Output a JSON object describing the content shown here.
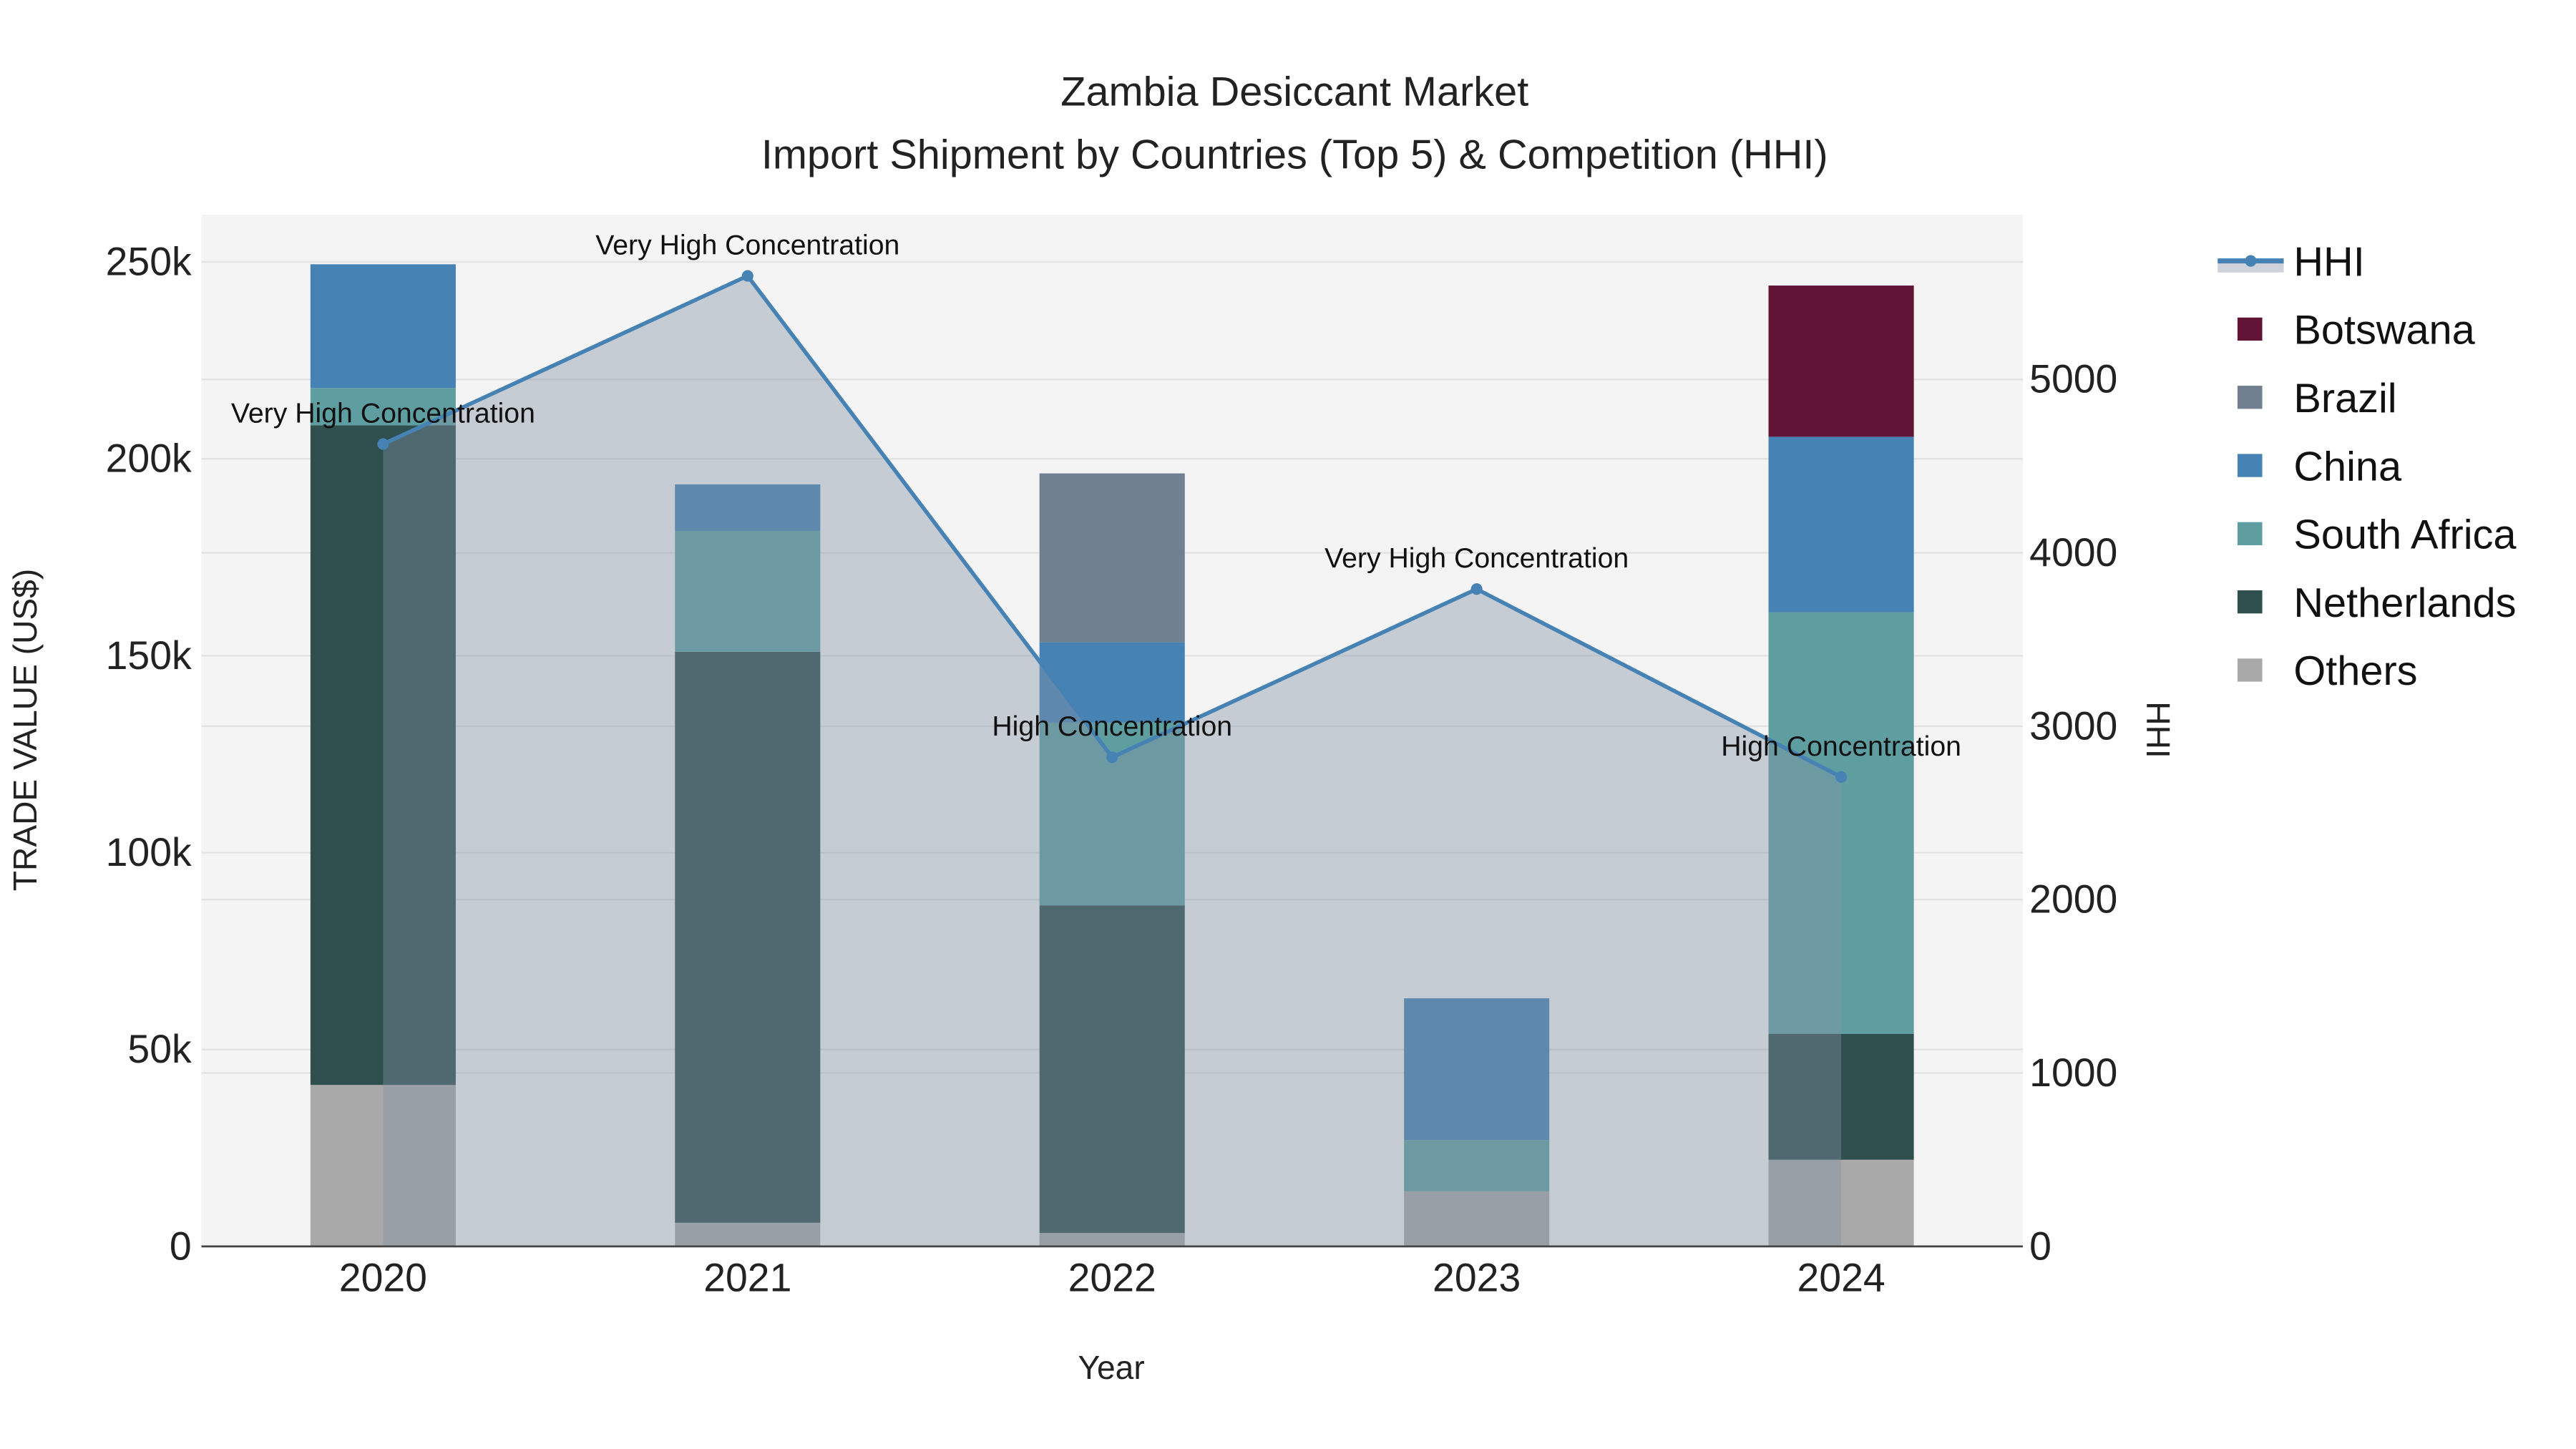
{
  "chart_data": {
    "type": "bar",
    "title": "Zambia Desiccant Market",
    "subtitle": "Import Shipment by Countries (Top 5) & Competition (HHI)",
    "xlabel": "Year",
    "ylabel": "TRADE VALUE (US$)",
    "y2label": "HHI",
    "categories": [
      "2020",
      "2021",
      "2022",
      "2023",
      "2024"
    ],
    "ylim": [
      0,
      262000
    ],
    "y_ticks": [
      0,
      50000,
      100000,
      150000,
      200000,
      250000
    ],
    "y_tick_labels": [
      "0",
      "50k",
      "100k",
      "150k",
      "200k",
      "250k"
    ],
    "y2lim": [
      0,
      5950
    ],
    "y2_ticks": [
      0,
      1000,
      2000,
      3000,
      4000,
      5000
    ],
    "y2_tick_labels": [
      "0",
      "1000",
      "2000",
      "3000",
      "4000",
      "5000"
    ],
    "stacked": true,
    "series": [
      {
        "name": "Others",
        "color": "#a9a9a9",
        "values": [
          41000,
          6000,
          3400,
          14000,
          22000
        ]
      },
      {
        "name": "Netherlands",
        "color": "#2f4f4f",
        "values": [
          167500,
          145000,
          83200,
          0,
          32000
        ]
      },
      {
        "name": "South Africa",
        "color": "#5f9ea0",
        "values": [
          9500,
          30700,
          46400,
          13000,
          107000
        ]
      },
      {
        "name": "China",
        "color": "#4682b4",
        "values": [
          31400,
          11800,
          20400,
          36000,
          44600
        ]
      },
      {
        "name": "Brazil",
        "color": "#708090",
        "values": [
          0,
          0,
          42900,
          0,
          0
        ]
      },
      {
        "name": "Botswana",
        "color": "#611435",
        "values": [
          0,
          0,
          0,
          0,
          38400
        ]
      }
    ],
    "hhi": {
      "name": "HHI",
      "color": "#4682b4",
      "values": [
        4627,
        5597,
        2821,
        3791,
        2707
      ],
      "annotations": [
        "Very High Concentration",
        "Very High Concentration",
        "High Concentration",
        "Very High Concentration",
        "High Concentration"
      ]
    },
    "legend": {
      "placement": "right",
      "entries": [
        "HHI",
        "Botswana",
        "Brazil",
        "China",
        "South Africa",
        "Netherlands",
        "Others"
      ]
    },
    "grid": true
  }
}
